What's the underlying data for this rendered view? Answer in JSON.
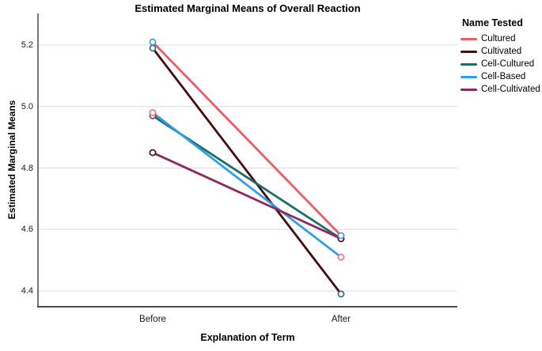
{
  "title": "Estimated Marginal Means of Overall Reaction",
  "chart_data": {
    "type": "line",
    "title": "Estimated Marginal Means of Overall Reaction",
    "xlabel": "Explanation of Term",
    "ylabel": "Estimated Marginal Means",
    "categories": [
      "Before",
      "After"
    ],
    "yticks": [
      "5.2",
      "5.0",
      "4.8",
      "4.6",
      "4.4"
    ],
    "ylim": [
      4.33,
      5.31
    ],
    "grid": "horizontal",
    "legend_title": "Name Tested",
    "legend_position": "right",
    "marker_style": "open-circle",
    "series": [
      {
        "name": "Cultured",
        "values": [
          5.21,
          4.58
        ],
        "line_color": "#f15b62",
        "marker_color": "#41a0e8"
      },
      {
        "name": "Cultivated",
        "values": [
          5.19,
          4.39
        ],
        "line_color": "#470d12",
        "marker_color": "#26766c"
      },
      {
        "name": "Cell-Cultured",
        "values": [
          4.97,
          4.57
        ],
        "line_color": "#1e6e66",
        "marker_color": "#9c2e66"
      },
      {
        "name": "Cell-Based",
        "values": [
          4.98,
          4.51
        ],
        "line_color": "#2e9fe8",
        "marker_color": "#f2787e"
      },
      {
        "name": "Cell-Cultivated",
        "values": [
          4.85,
          4.57
        ],
        "line_color": "#8e2862",
        "marker_color": "#491419"
      }
    ],
    "marker_draw_order": [
      "Cell-Cultured",
      "Cell-Cultivated",
      "Cell-Based",
      "Cultivated",
      "Cultured"
    ],
    "colors": {
      "grid": "#dcdcdc",
      "y_axis": "#3f3f3f",
      "x_axis": "#4b4b4b"
    }
  }
}
